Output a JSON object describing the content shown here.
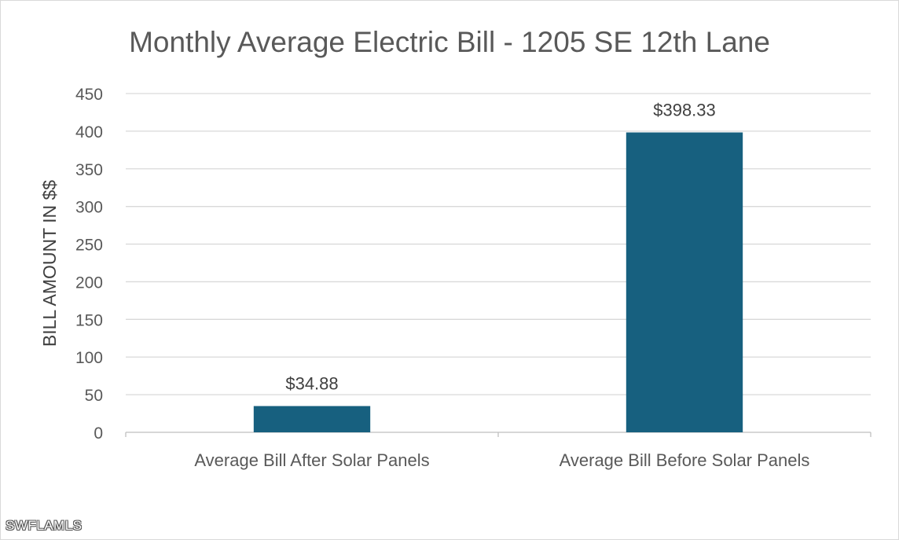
{
  "chart_data": {
    "type": "bar",
    "title": "Monthly Average Electric Bill - 1205 SE 12th Lane",
    "xlabel": "",
    "ylabel": "BILL AMOUNT IN $$",
    "categories": [
      "Average Bill After Solar Panels",
      "Average Bill Before Solar Panels"
    ],
    "values": [
      34.88,
      398.33
    ],
    "data_labels": [
      "$34.88",
      "$398.33"
    ],
    "ylim": [
      0,
      450
    ],
    "yticks": [
      0,
      50,
      100,
      150,
      200,
      250,
      300,
      350,
      400,
      450
    ],
    "grid": true,
    "legend": "none",
    "colors": {
      "bar": "#17607f",
      "grid": "#d9d9d9",
      "axis_text": "#595959"
    }
  },
  "watermark": "SWFLAMLS"
}
